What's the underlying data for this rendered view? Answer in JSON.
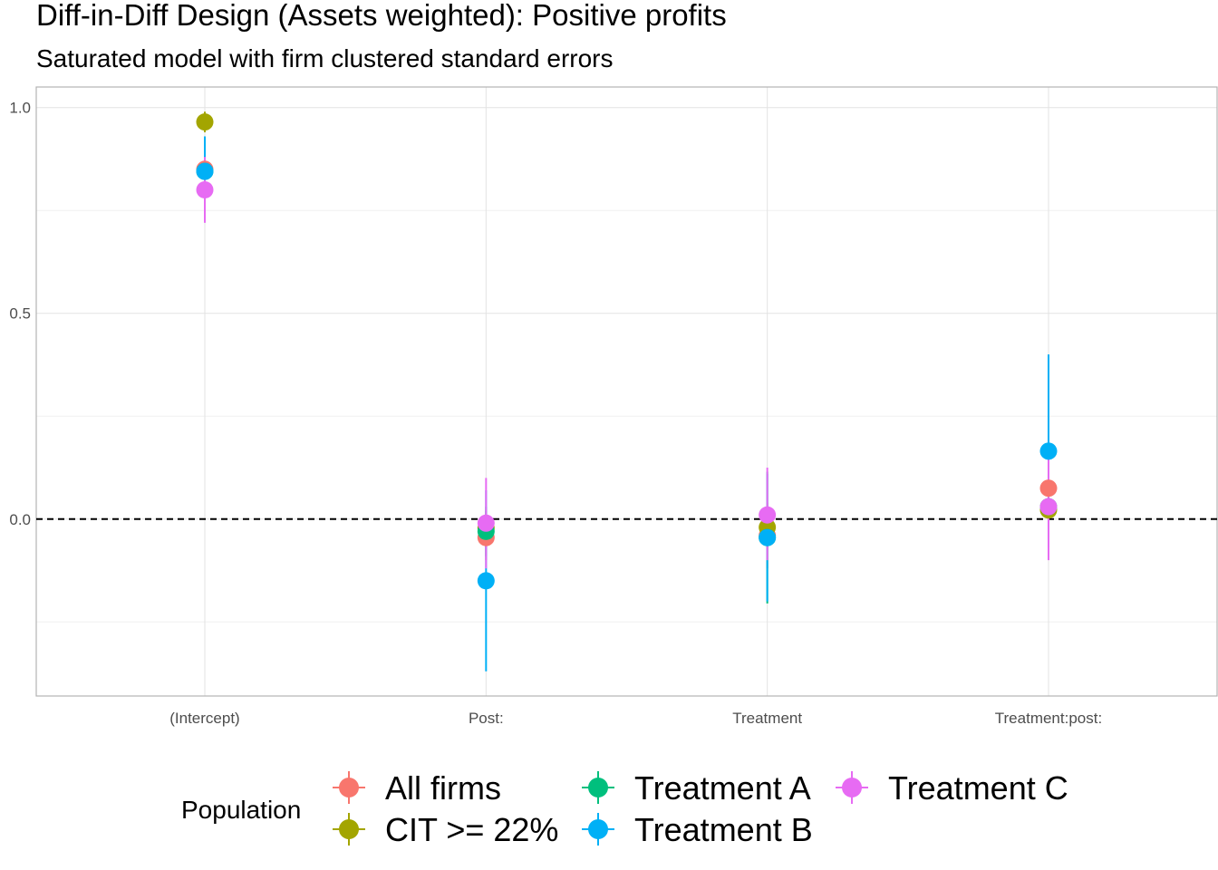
{
  "chart_data": {
    "type": "scatter",
    "title": "Diff-in-Diff Design (Assets weighted): Positive profits",
    "subtitle": "Saturated model with firm clustered standard errors",
    "xlabel": "",
    "ylabel": "",
    "categories": [
      "(Intercept)",
      "Post:",
      "Treatment",
      "Treatment:post:"
    ],
    "ylim": [
      -0.43,
      1.05
    ],
    "y_ticks": [
      "0.0",
      "0.5",
      "1.0"
    ],
    "y_tick_values": [
      0.0,
      0.5,
      1.0
    ],
    "reference_line": {
      "y": 0.0,
      "style": "dashed"
    },
    "grid": true,
    "legend": {
      "title": "Population",
      "position": "bottom"
    },
    "series": [
      {
        "name": "All firms",
        "color": "#F8766D",
        "values": [
          0.85,
          -0.045,
          -0.04,
          0.075
        ],
        "lower": [
          0.82,
          -0.1,
          -0.12,
          0.0
        ],
        "upper": [
          0.88,
          0.01,
          0.04,
          0.15
        ]
      },
      {
        "name": "CIT >= 22%",
        "color": "#A3A500",
        "values": [
          0.965,
          -0.022,
          -0.02,
          0.022
        ],
        "lower": [
          0.94,
          -0.06,
          -0.07,
          -0.04
        ],
        "upper": [
          0.99,
          0.02,
          0.03,
          0.08
        ]
      },
      {
        "name": "Treatment A",
        "color": "#00BF7D",
        "values": [
          0.845,
          -0.03,
          -0.045,
          0.03
        ],
        "lower": [
          0.8,
          -0.09,
          -0.205,
          -0.05
        ],
        "upper": [
          0.89,
          0.03,
          0.115,
          0.11
        ]
      },
      {
        "name": "Treatment B",
        "color": "#00B0F6",
        "values": [
          0.845,
          -0.15,
          -0.045,
          0.165
        ],
        "lower": [
          0.76,
          -0.37,
          -0.2,
          -0.07
        ],
        "upper": [
          0.93,
          0.07,
          0.11,
          0.4
        ]
      },
      {
        "name": "Treatment C",
        "color": "#E76BF3",
        "values": [
          0.8,
          -0.01,
          0.01,
          0.03
        ],
        "lower": [
          0.72,
          -0.12,
          -0.1,
          -0.1
        ],
        "upper": [
          0.88,
          0.1,
          0.125,
          0.16
        ]
      }
    ]
  }
}
